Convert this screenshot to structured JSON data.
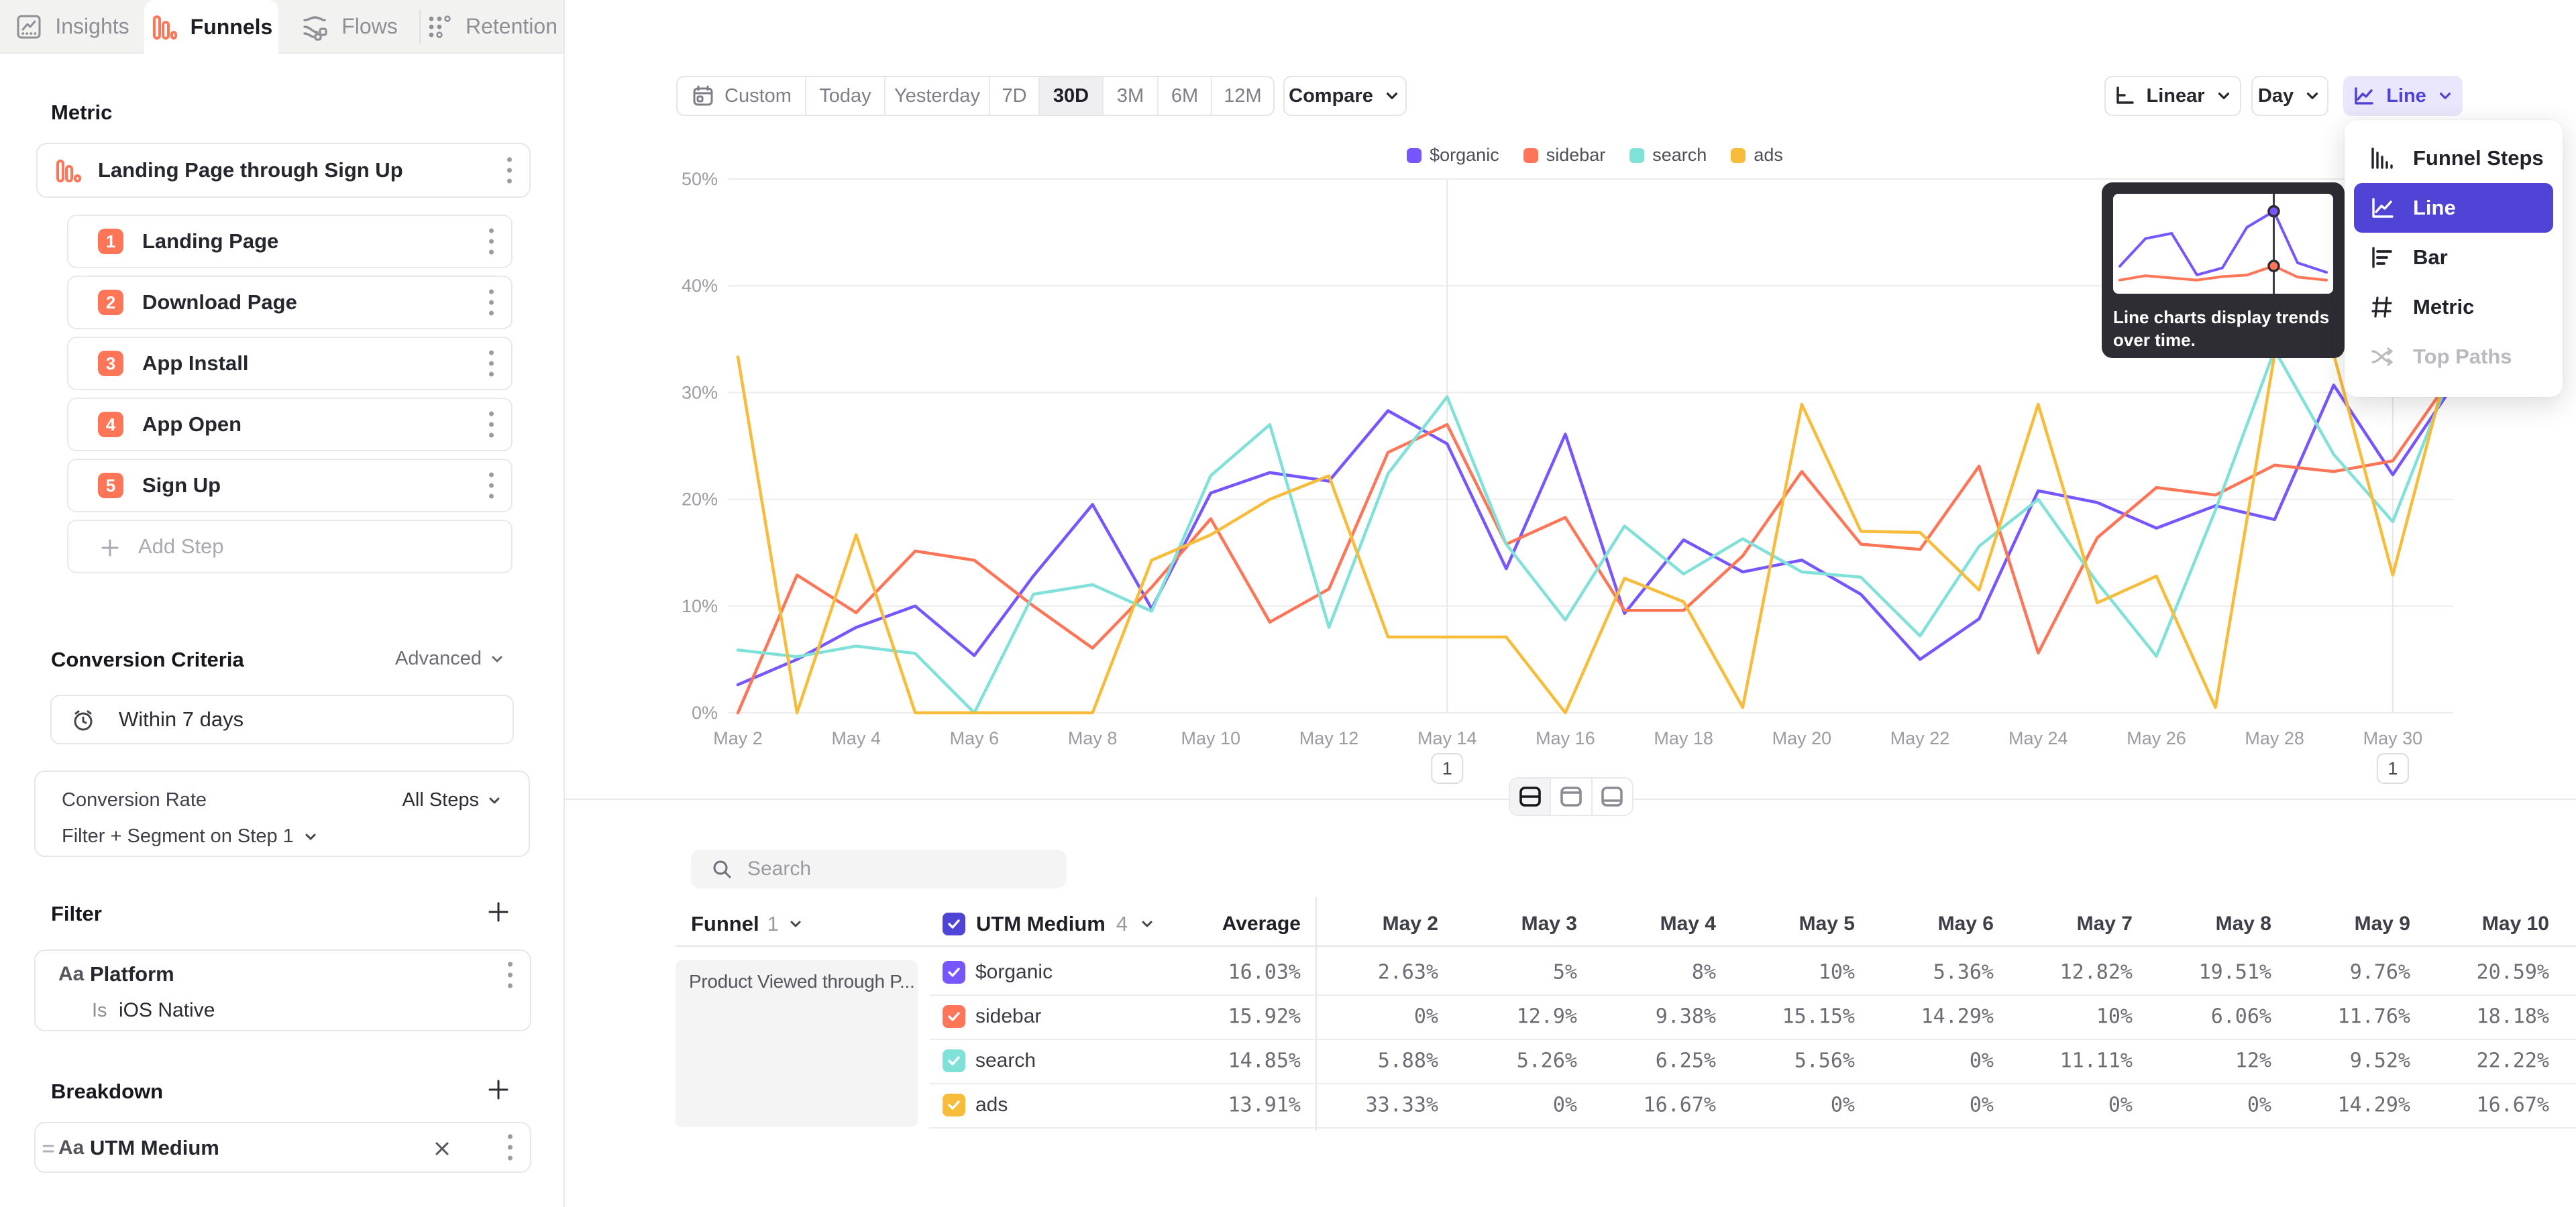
{
  "accent": "#4f44d6",
  "tabs": {
    "items": [
      {
        "label": "Insights",
        "icon": "insights-icon",
        "active": false
      },
      {
        "label": "Funnels",
        "icon": "funnels-icon",
        "active": true
      },
      {
        "label": "Flows",
        "icon": "flows-icon",
        "active": false
      },
      {
        "label": "Retention",
        "icon": "retention-icon",
        "active": false
      }
    ]
  },
  "sidebar": {
    "metric_heading": "Metric",
    "funnel_card": {
      "title": "Landing Page through Sign Up"
    },
    "steps": [
      {
        "num": "1",
        "label": "Landing Page"
      },
      {
        "num": "2",
        "label": "Download Page"
      },
      {
        "num": "3",
        "label": "App Install"
      },
      {
        "num": "4",
        "label": "App Open"
      },
      {
        "num": "5",
        "label": "Sign Up"
      }
    ],
    "add_step_label": "Add Step",
    "conversion": {
      "heading": "Conversion Criteria",
      "advanced_label": "Advanced",
      "window": "Within 7 days",
      "rate_label": "Conversion Rate",
      "rate_value": "All Steps",
      "filter_segment": "Filter + Segment on Step 1"
    },
    "filter": {
      "heading": "Filter",
      "type_icon": "Aa",
      "property": "Platform",
      "operator": "Is",
      "value": "iOS Native"
    },
    "breakdown": {
      "heading": "Breakdown",
      "type_icon": "Aa",
      "property": "UTM Medium"
    }
  },
  "toolbar": {
    "ranges": [
      "Custom",
      "Today",
      "Yesterday",
      "7D",
      "30D",
      "3M",
      "6M",
      "12M"
    ],
    "active_range": "30D",
    "compare_label": "Compare",
    "scale_label": "Linear",
    "interval_label": "Day",
    "chart_type_label": "Line"
  },
  "chart_menu": {
    "items": [
      {
        "label": "Funnel Steps",
        "icon": "funnel-steps-icon"
      },
      {
        "label": "Line",
        "icon": "line-chart-icon",
        "selected": true
      },
      {
        "label": "Bar",
        "icon": "bar-chart-icon"
      },
      {
        "label": "Metric",
        "icon": "metric-icon"
      },
      {
        "label": "Top Paths",
        "icon": "top-paths-icon",
        "disabled": true
      }
    ]
  },
  "tooltip": {
    "text": "Line charts display trends over time.",
    "mini_chart": {
      "purple": [
        [
          0,
          0.76
        ],
        [
          0.124,
          0.44
        ],
        [
          0.251,
          0.38
        ],
        [
          0.373,
          0.86
        ],
        [
          0.496,
          0.78
        ],
        [
          0.615,
          0.31
        ],
        [
          0.745,
          0.125
        ],
        [
          0.86,
          0.72
        ],
        [
          1,
          0.83
        ]
      ],
      "red": [
        [
          0,
          0.92
        ],
        [
          0.124,
          0.87
        ],
        [
          0.251,
          0.895
        ],
        [
          0.373,
          0.92
        ],
        [
          0.496,
          0.88
        ],
        [
          0.615,
          0.862
        ],
        [
          0.745,
          0.757
        ],
        [
          0.86,
          0.885
        ],
        [
          1,
          0.92
        ]
      ],
      "cursor_x": 0.745,
      "purple_color": "#7856FF",
      "red_color": "#FF7557"
    }
  },
  "chart_data": {
    "type": "line",
    "x": [
      "May 2",
      "May 3",
      "May 4",
      "May 5",
      "May 6",
      "May 7",
      "May 8",
      "May 9",
      "May 10",
      "May 11",
      "May 12",
      "May 13",
      "May 14",
      "May 15",
      "May 16",
      "May 17",
      "May 18",
      "May 19",
      "May 20",
      "May 21",
      "May 22",
      "May 23",
      "May 24",
      "May 25",
      "May 26",
      "May 27",
      "May 28",
      "May 29",
      "May 30",
      "May 31"
    ],
    "x_tick_every": 2,
    "ylim": [
      0,
      50
    ],
    "yticks": [
      0,
      10,
      20,
      30,
      40,
      50
    ],
    "grid": true,
    "legend_position": "top-center",
    "series": [
      {
        "name": "$organic",
        "color": "#7856FF",
        "values": [
          2.63,
          5,
          8,
          10,
          5.36,
          12.82,
          19.51,
          9.76,
          20.59,
          22.5,
          21.7,
          28.3,
          25.2,
          13.5,
          26.1,
          9.3,
          16.2,
          13.2,
          14.3,
          11.1,
          5,
          8.8,
          20.8,
          19.7,
          17.3,
          19.4,
          18.1,
          30.7,
          22.3,
          30.5
        ]
      },
      {
        "name": "sidebar",
        "color": "#FF7557",
        "values": [
          0,
          12.9,
          9.38,
          15.15,
          14.29,
          10,
          6.06,
          11.76,
          18.18,
          8.5,
          11.6,
          24.4,
          27,
          15.8,
          18.3,
          9.6,
          9.6,
          14.7,
          22.6,
          15.8,
          15.3,
          23.1,
          5.6,
          16.4,
          21.1,
          20.4,
          23.2,
          22.6,
          23.6,
          31.5
        ]
      },
      {
        "name": "search",
        "color": "#80E1D9",
        "values": [
          5.88,
          5.26,
          6.25,
          5.56,
          0,
          11.11,
          12,
          9.52,
          22.22,
          27,
          8,
          22.4,
          29.6,
          15.8,
          8.7,
          17.5,
          13,
          16.3,
          13.2,
          12.7,
          7.2,
          15.6,
          20,
          12.2,
          5.3,
          19,
          34,
          24.2,
          17.9,
          32
        ]
      },
      {
        "name": "ads",
        "color": "#F8BC3B",
        "values": [
          33.33,
          0,
          16.67,
          0,
          0,
          0,
          0,
          14.29,
          16.67,
          20,
          22.2,
          7.1,
          7.1,
          7.1,
          0,
          12.6,
          10.4,
          0.5,
          28.9,
          17,
          16.9,
          11.5,
          28.9,
          10.3,
          12.8,
          0.5,
          33.6,
          33.6,
          12.9,
          34
        ]
      }
    ],
    "annotations": [
      {
        "label": "1",
        "x": "May 14"
      },
      {
        "label": "1",
        "x": "May 30"
      }
    ]
  },
  "table": {
    "search_placeholder": "Search",
    "funnel_col_label": "Funnel",
    "funnel_col_count": "1",
    "breakdown_col_label": "UTM Medium",
    "breakdown_col_count": "4",
    "average_label": "Average",
    "date_columns": [
      "May 2",
      "May 3",
      "May 4",
      "May 5",
      "May 6",
      "May 7",
      "May 8",
      "May 9",
      "May 10"
    ],
    "funnel_name": "Product Viewed through P...",
    "rows": [
      {
        "name": "$organic",
        "color": "#7856FF",
        "checked": true,
        "average": "16.03%",
        "values": [
          "2.63%",
          "5%",
          "8%",
          "10%",
          "5.36%",
          "12.82%",
          "19.51%",
          "9.76%",
          "20.59%"
        ]
      },
      {
        "name": "sidebar",
        "color": "#FF7557",
        "checked": true,
        "average": "15.92%",
        "values": [
          "0%",
          "12.9%",
          "9.38%",
          "15.15%",
          "14.29%",
          "10%",
          "6.06%",
          "11.76%",
          "18.18%"
        ]
      },
      {
        "name": "search",
        "color": "#80E1D9",
        "checked": true,
        "average": "14.85%",
        "values": [
          "5.88%",
          "5.26%",
          "6.25%",
          "5.56%",
          "0%",
          "11.11%",
          "12%",
          "9.52%",
          "22.22%"
        ]
      },
      {
        "name": "ads",
        "color": "#F8BC3B",
        "checked": true,
        "average": "13.91%",
        "values": [
          "33.33%",
          "0%",
          "16.67%",
          "0%",
          "0%",
          "0%",
          "0%",
          "14.29%",
          "16.67%"
        ]
      }
    ]
  }
}
